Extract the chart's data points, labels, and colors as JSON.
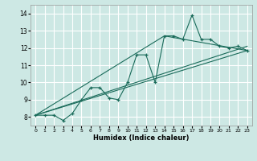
{
  "bg_color": "#cde8e4",
  "grid_color": "#ffffff",
  "line_color": "#1a6b5a",
  "x_label": "Humidex (Indice chaleur)",
  "x_ticks": [
    0,
    1,
    2,
    3,
    4,
    5,
    6,
    7,
    8,
    9,
    10,
    11,
    12,
    13,
    14,
    15,
    16,
    17,
    18,
    19,
    20,
    21,
    22,
    23
  ],
  "y_ticks": [
    8,
    9,
    10,
    11,
    12,
    13,
    14
  ],
  "ylim": [
    7.5,
    14.5
  ],
  "xlim": [
    -0.5,
    23.5
  ],
  "curve_x": [
    0,
    1,
    2,
    3,
    4,
    5,
    6,
    7,
    8,
    9,
    10,
    11,
    12,
    13,
    14,
    15,
    16,
    17,
    18,
    19,
    20,
    21,
    22,
    23
  ],
  "curve_y": [
    8.1,
    8.1,
    8.1,
    7.8,
    8.2,
    9.0,
    9.7,
    9.7,
    9.1,
    9.0,
    10.0,
    11.6,
    11.6,
    10.0,
    12.7,
    12.7,
    12.5,
    13.9,
    12.5,
    12.5,
    12.1,
    12.0,
    12.1,
    11.85
  ],
  "line1_x": [
    0,
    23
  ],
  "line1_y": [
    8.1,
    11.85
  ],
  "line2_x": [
    0,
    14,
    23
  ],
  "line2_y": [
    8.1,
    12.7,
    11.85
  ],
  "line3_x": [
    0,
    23
  ],
  "line3_y": [
    8.1,
    12.1
  ]
}
